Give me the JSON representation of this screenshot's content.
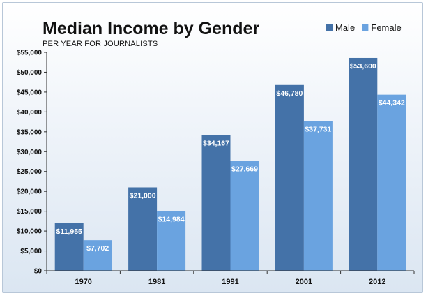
{
  "chart_data": {
    "type": "bar",
    "title": "Median Income by Gender",
    "subtitle": "PER YEAR FOR JOURNALISTS",
    "xlabel": "",
    "ylabel": "",
    "categories": [
      "1970",
      "1981",
      "1991",
      "2001",
      "2012"
    ],
    "series": [
      {
        "name": "Male",
        "color": "#4472a8",
        "values": [
          11955,
          21000,
          34167,
          46780,
          53600
        ],
        "labels": [
          "$11,955",
          "$21,000",
          "$34,167",
          "$46,780",
          "$53,600"
        ]
      },
      {
        "name": "Female",
        "color": "#6aa3e0",
        "values": [
          7702,
          14984,
          27669,
          37731,
          44342
        ],
        "labels": [
          "$7,702",
          "$14,984",
          "$27,669",
          "$37,731",
          "$44,342"
        ]
      }
    ],
    "ylim": [
      0,
      55000
    ],
    "yticks": [
      0,
      5000,
      10000,
      15000,
      20000,
      25000,
      30000,
      35000,
      40000,
      45000,
      50000,
      55000
    ],
    "ytick_labels": [
      "$0",
      "$5,000",
      "$10,000",
      "$15,000",
      "$20,000",
      "$25,000",
      "$30,000",
      "$35,000",
      "$40,000",
      "$45,000",
      "$50,000",
      "$55,000"
    ],
    "grid": false,
    "legend": "top-right"
  }
}
